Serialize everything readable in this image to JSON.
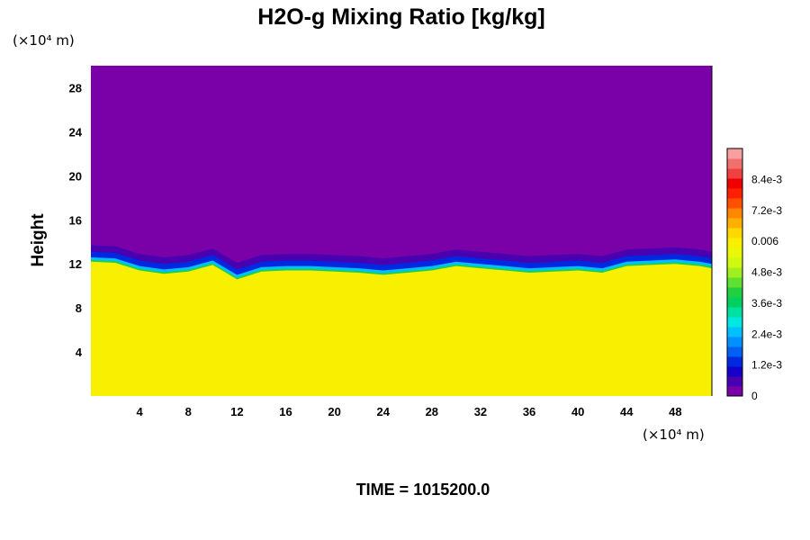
{
  "chart_data": {
    "type": "heatmap",
    "title": "H2O-g Mixing Ratio [kg/kg]",
    "xunit": "(×10⁴ m)",
    "yunit": "(×10⁴ m)",
    "ylabel": "Height",
    "footer": "TIME = 1015200.0",
    "xlim": [
      0,
      51
    ],
    "ylim": [
      0,
      30
    ],
    "x_ticks": [
      4,
      8,
      12,
      16,
      20,
      24,
      28,
      32,
      36,
      40,
      44,
      48
    ],
    "x_tick_labels": [
      "4",
      "8",
      "12",
      "16",
      "20",
      "24",
      "28",
      "32",
      "36",
      "40",
      "44",
      "48"
    ],
    "y_ticks": [
      4,
      8,
      12,
      16,
      20,
      24,
      28
    ],
    "y_tick_labels": [
      "4",
      "8",
      "12",
      "16",
      "20",
      "24",
      "28"
    ],
    "colorbar": {
      "range": [
        0,
        0.0096
      ],
      "tick_values": [
        0,
        0.0012,
        0.0024,
        0.0036,
        0.0048,
        0.006,
        0.0072,
        0.0084
      ],
      "tick_labels": [
        "0",
        "1.2e-3",
        "2.4e-3",
        "3.6e-3",
        "4.8e-3",
        "0.006",
        "7.2e-3",
        "8.4e-3"
      ],
      "colors": [
        "#7a00a8",
        "#4800b0",
        "#1400c8",
        "#0028e0",
        "#0060f0",
        "#0090ff",
        "#00c0ff",
        "#00e8e0",
        "#00e0a0",
        "#00d060",
        "#20d040",
        "#60e030",
        "#a0f020",
        "#d0f810",
        "#e8f808",
        "#f8f000",
        "#ffd800",
        "#ffb000",
        "#ff8800",
        "#ff5000",
        "#ff2000",
        "#f00000",
        "#f04040",
        "#f07070",
        "#f8a0a0"
      ]
    },
    "fields": {
      "upper_value": 0,
      "lower_value": 0.0058,
      "boundary_height": [
        [
          0,
          12.2
        ],
        [
          2,
          12.1
        ],
        [
          4,
          11.4
        ],
        [
          6,
          11.1
        ],
        [
          8,
          11.3
        ],
        [
          10,
          11.9
        ],
        [
          12,
          10.6
        ],
        [
          14,
          11.3
        ],
        [
          16,
          11.4
        ],
        [
          18,
          11.4
        ],
        [
          20,
          11.3
        ],
        [
          22,
          11.2
        ],
        [
          24,
          11.0
        ],
        [
          26,
          11.2
        ],
        [
          28,
          11.4
        ],
        [
          30,
          11.8
        ],
        [
          32,
          11.6
        ],
        [
          34,
          11.4
        ],
        [
          36,
          11.2
        ],
        [
          38,
          11.3
        ],
        [
          40,
          11.4
        ],
        [
          42,
          11.2
        ],
        [
          44,
          11.8
        ],
        [
          46,
          11.9
        ],
        [
          48,
          12.0
        ],
        [
          50,
          11.8
        ],
        [
          51,
          11.6
        ]
      ]
    }
  }
}
